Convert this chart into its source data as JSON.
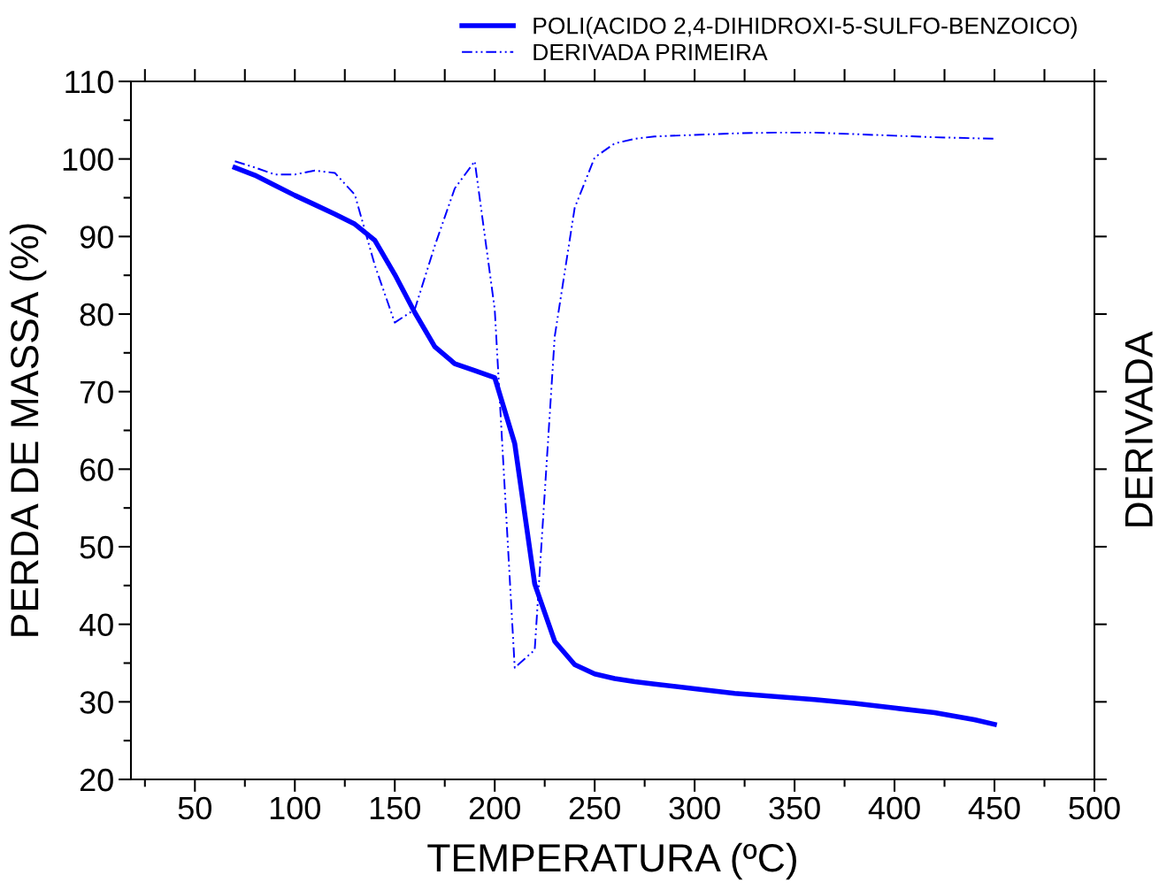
{
  "chart_data": {
    "type": "line",
    "xlabel": "TEMPERATURA (ºC)",
    "ylabel": "PERDA DE MASSA (%)",
    "y2label": "DERIVADA",
    "xlim": [
      18,
      500
    ],
    "ylim": [
      20,
      110
    ],
    "xticks": [
      {
        "value": 25,
        "label": null
      },
      50,
      {
        "value": 75,
        "label": null
      },
      100,
      {
        "value": 125,
        "label": null
      },
      150,
      {
        "value": 175,
        "label": null
      },
      200,
      {
        "value": 225,
        "label": null
      },
      250,
      {
        "value": 275,
        "label": null
      },
      300,
      {
        "value": 325,
        "label": null
      },
      350,
      {
        "value": 375,
        "label": null
      },
      400,
      {
        "value": 425,
        "label": null
      },
      450,
      {
        "value": 475,
        "label": null
      },
      500
    ],
    "yticks": [
      20,
      {
        "value": 25,
        "label": null
      },
      30,
      {
        "value": 35,
        "label": null
      },
      40,
      {
        "value": 45,
        "label": null
      },
      50,
      {
        "value": 55,
        "label": null
      },
      60,
      {
        "value": 65,
        "label": null
      },
      70,
      {
        "value": 75,
        "label": null
      },
      80,
      {
        "value": 85,
        "label": null
      },
      90,
      {
        "value": 95,
        "label": null
      },
      100,
      {
        "value": 105,
        "label": null
      },
      110
    ],
    "grid": false,
    "legend": "top right",
    "series": [
      {
        "name": "POLI(ACIDO 2,4-DIHIDROXI-5-SULFO-BENZOICO)",
        "color": "#0000ff",
        "line_style": "solid",
        "x": [
          70,
          80,
          90,
          100,
          110,
          120,
          130,
          140,
          150,
          160,
          170,
          180,
          190,
          200,
          210,
          220,
          230,
          240,
          250,
          260,
          270,
          280,
          300,
          320,
          340,
          360,
          380,
          400,
          420,
          440,
          450
        ],
        "values": [
          98.9,
          97.9,
          96.6,
          95.3,
          94.1,
          92.9,
          91.6,
          89.5,
          85.1,
          80.2,
          75.8,
          73.6,
          72.7,
          71.8,
          63.3,
          45.2,
          37.8,
          34.8,
          33.6,
          33.0,
          32.6,
          32.3,
          31.7,
          31.1,
          30.7,
          30.3,
          29.8,
          29.2,
          28.6,
          27.7,
          27.1
        ]
      },
      {
        "name": "DERIVADA PRIMEIRA",
        "color": "#0000ff",
        "line_style": "dashed",
        "x": [
          70,
          80,
          90,
          100,
          110,
          120,
          130,
          140,
          150,
          160,
          170,
          180,
          190,
          200,
          210,
          220,
          230,
          240,
          250,
          260,
          270,
          280,
          300,
          320,
          340,
          360,
          380,
          400,
          420,
          450
        ],
        "values": [
          99.7,
          98.9,
          98.0,
          98.0,
          98.5,
          98.2,
          95.4,
          86.3,
          78.9,
          80.6,
          88.8,
          96.2,
          99.7,
          80.6,
          34.4,
          36.7,
          77.1,
          93.7,
          100.2,
          102.0,
          102.6,
          102.9,
          103.1,
          103.3,
          103.4,
          103.4,
          103.2,
          103.0,
          102.8,
          102.6
        ]
      }
    ]
  }
}
